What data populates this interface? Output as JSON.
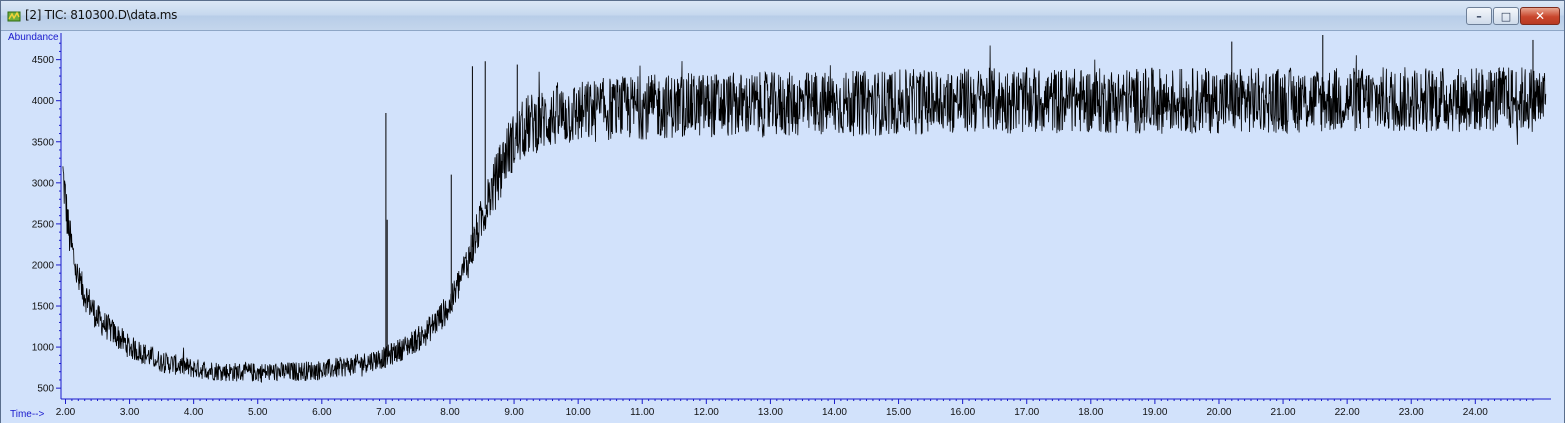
{
  "window": {
    "title": "[2] TIC: 810300.D\\data.ms",
    "buttons": {
      "minimize": "–",
      "maximize": "□",
      "close": "✕"
    },
    "accent": "#c9462c",
    "plot_background": "#d2e2fb"
  },
  "chart_data": {
    "type": "line",
    "ylabel": "Abundance",
    "xlabel": "Time-->",
    "xlim": [
      1.93,
      25.15
    ],
    "ylim": [
      380,
      4800
    ],
    "x_ticks": [
      "2.00",
      "3.00",
      "4.00",
      "5.00",
      "6.00",
      "7.00",
      "8.00",
      "9.00",
      "10.00",
      "11.00",
      "12.00",
      "13.00",
      "14.00",
      "15.00",
      "16.00",
      "17.00",
      "18.00",
      "19.00",
      "20.00",
      "21.00",
      "22.00",
      "23.00",
      "24.00"
    ],
    "y_ticks": [
      "500",
      "1000",
      "1500",
      "2000",
      "2500",
      "3000",
      "3500",
      "4000",
      "4500"
    ],
    "grid": false,
    "series": [
      {
        "name": "",
        "color": "#000000",
        "baseline": {
          "x": [
            1.96,
            2.05,
            2.2,
            2.5,
            3.0,
            3.5,
            4.0,
            4.5,
            5.0,
            5.5,
            6.0,
            6.5,
            7.0,
            7.3,
            7.6,
            8.0,
            8.3,
            8.6,
            8.9,
            9.2,
            9.6,
            10.0,
            10.5,
            11.0,
            12.0,
            13.0,
            14.0,
            15.0,
            16.0,
            18.0,
            20.0,
            22.0,
            25.1
          ],
          "y": [
            3100,
            2400,
            1800,
            1350,
            1000,
            820,
            740,
            700,
            690,
            700,
            720,
            780,
            880,
            1000,
            1150,
            1500,
            2100,
            2800,
            3400,
            3700,
            3800,
            3850,
            3900,
            3920,
            3950,
            3950,
            3960,
            3980,
            4000,
            4000,
            4000,
            4010,
            4020
          ]
        },
        "noise_amplitude": 380,
        "spikes": [
          {
            "x": 7.0,
            "y": 3850
          },
          {
            "x": 7.02,
            "y": 2550
          },
          {
            "x": 8.02,
            "y": 3100
          },
          {
            "x": 8.35,
            "y": 4420
          },
          {
            "x": 8.55,
            "y": 4480
          },
          {
            "x": 9.05,
            "y": 4440
          },
          {
            "x": 21.62,
            "y": 4800
          },
          {
            "x": 20.2,
            "y": 4720
          },
          {
            "x": 24.9,
            "y": 4740
          }
        ]
      }
    ]
  }
}
